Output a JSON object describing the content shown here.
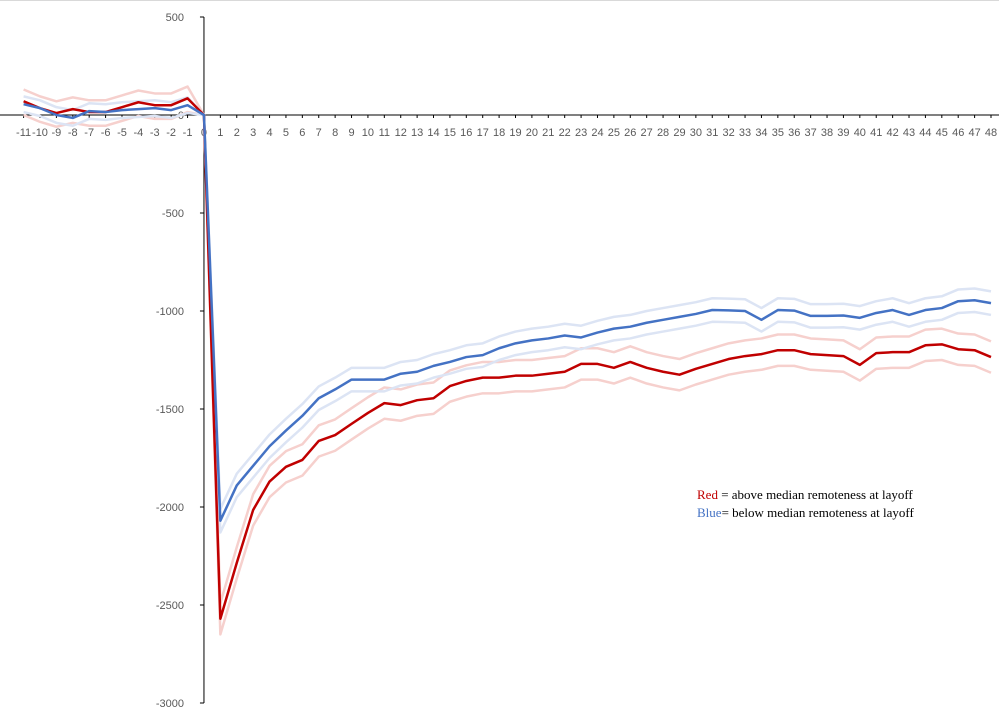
{
  "chart_data": {
    "type": "line",
    "x": [
      -11,
      -10,
      -9,
      -8,
      -7,
      -6,
      -5,
      -4,
      -3,
      -2,
      -1,
      0,
      1,
      2,
      3,
      4,
      5,
      6,
      7,
      8,
      9,
      10,
      11,
      12,
      13,
      14,
      15,
      16,
      17,
      18,
      19,
      20,
      21,
      22,
      23,
      24,
      25,
      26,
      27,
      28,
      29,
      30,
      31,
      32,
      33,
      34,
      35,
      36,
      37,
      38,
      39,
      40,
      41,
      42,
      43,
      44,
      45,
      46,
      47,
      48
    ],
    "xlim": [
      -11,
      48
    ],
    "xticks": [
      -11,
      -10,
      -9,
      -8,
      -7,
      -6,
      -5,
      -4,
      -3,
      -2,
      -1,
      0,
      1,
      2,
      3,
      4,
      5,
      6,
      7,
      8,
      9,
      10,
      11,
      12,
      13,
      14,
      15,
      16,
      17,
      18,
      19,
      20,
      21,
      22,
      23,
      24,
      25,
      26,
      27,
      28,
      29,
      30,
      31,
      32,
      33,
      34,
      35,
      36,
      37,
      38,
      39,
      40,
      41,
      42,
      43,
      44,
      45,
      46,
      47,
      48
    ],
    "ylim": [
      -3000,
      500
    ],
    "yticks": [
      -3000,
      -2500,
      -2000,
      -1500,
      -1000,
      -500,
      0,
      500
    ],
    "grid": false,
    "series": [
      {
        "color": "#f6d0cd",
        "values": [
          130,
          95,
          70,
          90,
          75,
          75,
          100,
          125,
          110,
          110,
          145,
          0,
          -2490,
          -2205,
          -1935,
          -1790,
          -1715,
          -1680,
          -1583,
          -1553,
          -1496,
          -1440,
          -1390,
          -1400,
          -1375,
          -1365,
          -1303,
          -1277,
          -1260,
          -1260,
          -1250,
          -1250,
          -1240,
          -1230,
          -1190,
          -1190,
          -1210,
          -1180,
          -1210,
          -1230,
          -1245,
          -1215,
          -1190,
          -1165,
          -1150,
          -1140,
          -1120,
          -1120,
          -1140,
          -1145,
          -1150,
          -1195,
          -1135,
          -1130,
          -1130,
          -1095,
          -1090,
          -1115,
          -1120,
          -1155
        ]
      },
      {
        "color": "#f6d0cd",
        "values": [
          0,
          -35,
          -60,
          -40,
          -55,
          -55,
          -30,
          -5,
          -20,
          -20,
          15,
          0,
          -2650,
          -2365,
          -2095,
          -1950,
          -1875,
          -1840,
          -1743,
          -1713,
          -1656,
          -1600,
          -1550,
          -1560,
          -1535,
          -1525,
          -1463,
          -1437,
          -1420,
          -1420,
          -1410,
          -1410,
          -1400,
          -1390,
          -1350,
          -1350,
          -1370,
          -1340,
          -1370,
          -1390,
          -1405,
          -1375,
          -1350,
          -1325,
          -1310,
          -1300,
          -1280,
          -1280,
          -1300,
          -1305,
          -1310,
          -1355,
          -1295,
          -1290,
          -1290,
          -1255,
          -1250,
          -1275,
          -1280,
          -1315
        ]
      },
      {
        "color": "#dce4f4",
        "values": [
          95,
          75,
          40,
          25,
          60,
          55,
          65,
          70,
          75,
          65,
          90,
          0,
          -2010,
          -1830,
          -1730,
          -1630,
          -1550,
          -1475,
          -1385,
          -1340,
          -1290,
          -1290,
          -1290,
          -1260,
          -1250,
          -1220,
          -1200,
          -1175,
          -1165,
          -1130,
          -1105,
          -1090,
          -1080,
          -1065,
          -1075,
          -1050,
          -1030,
          -1020,
          -1000,
          -985,
          -970,
          -955,
          -935,
          -937,
          -940,
          -985,
          -935,
          -938,
          -965,
          -965,
          -963,
          -975,
          -950,
          -935,
          -960,
          -935,
          -925,
          -890,
          -885,
          -900
        ]
      },
      {
        "color": "#dce4f4",
        "values": [
          15,
          -5,
          -40,
          -55,
          -20,
          -25,
          -15,
          -10,
          -5,
          -15,
          10,
          0,
          -2130,
          -1950,
          -1850,
          -1750,
          -1670,
          -1595,
          -1505,
          -1460,
          -1410,
          -1410,
          -1410,
          -1380,
          -1370,
          -1340,
          -1320,
          -1295,
          -1285,
          -1250,
          -1225,
          -1210,
          -1200,
          -1185,
          -1195,
          -1170,
          -1150,
          -1140,
          -1120,
          -1105,
          -1090,
          -1075,
          -1055,
          -1057,
          -1060,
          -1105,
          -1055,
          -1058,
          -1085,
          -1085,
          -1083,
          -1095,
          -1070,
          -1055,
          -1080,
          -1055,
          -1045,
          -1010,
          -1005,
          -1020
        ]
      },
      {
        "color": "#c00000",
        "values": [
          70,
          35,
          10,
          30,
          15,
          15,
          40,
          65,
          50,
          50,
          85,
          0,
          -2570,
          -2285,
          -2015,
          -1870,
          -1795,
          -1760,
          -1663,
          -1633,
          -1576,
          -1520,
          -1470,
          -1480,
          -1455,
          -1445,
          -1383,
          -1357,
          -1340,
          -1340,
          -1330,
          -1330,
          -1320,
          -1310,
          -1270,
          -1270,
          -1290,
          -1260,
          -1290,
          -1310,
          -1325,
          -1295,
          -1270,
          -1245,
          -1230,
          -1220,
          -1200,
          -1200,
          -1220,
          -1225,
          -1230,
          -1275,
          -1215,
          -1210,
          -1210,
          -1175,
          -1170,
          -1195,
          -1200,
          -1235
        ]
      },
      {
        "color": "#4472c4",
        "values": [
          55,
          35,
          0,
          -15,
          20,
          15,
          25,
          30,
          35,
          25,
          50,
          0,
          -2070,
          -1890,
          -1790,
          -1690,
          -1610,
          -1535,
          -1445,
          -1400,
          -1350,
          -1350,
          -1350,
          -1320,
          -1310,
          -1280,
          -1260,
          -1235,
          -1225,
          -1190,
          -1165,
          -1150,
          -1140,
          -1125,
          -1135,
          -1110,
          -1090,
          -1080,
          -1060,
          -1045,
          -1030,
          -1015,
          -995,
          -997,
          -1000,
          -1045,
          -995,
          -998,
          -1025,
          -1025,
          -1023,
          -1035,
          -1010,
          -995,
          -1020,
          -995,
          -985,
          -950,
          -945,
          -960
        ]
      }
    ],
    "annotation": {
      "lines": [
        [
          {
            "text": "Red",
            "color": "#c00000"
          },
          {
            "text": " = above median remoteness at layoff",
            "color": "#000000"
          }
        ],
        [
          {
            "text": "Blue",
            "color": "#4472c4"
          },
          {
            "text": "= below median remoteness at layoff",
            "color": "#000000"
          }
        ]
      ]
    }
  }
}
